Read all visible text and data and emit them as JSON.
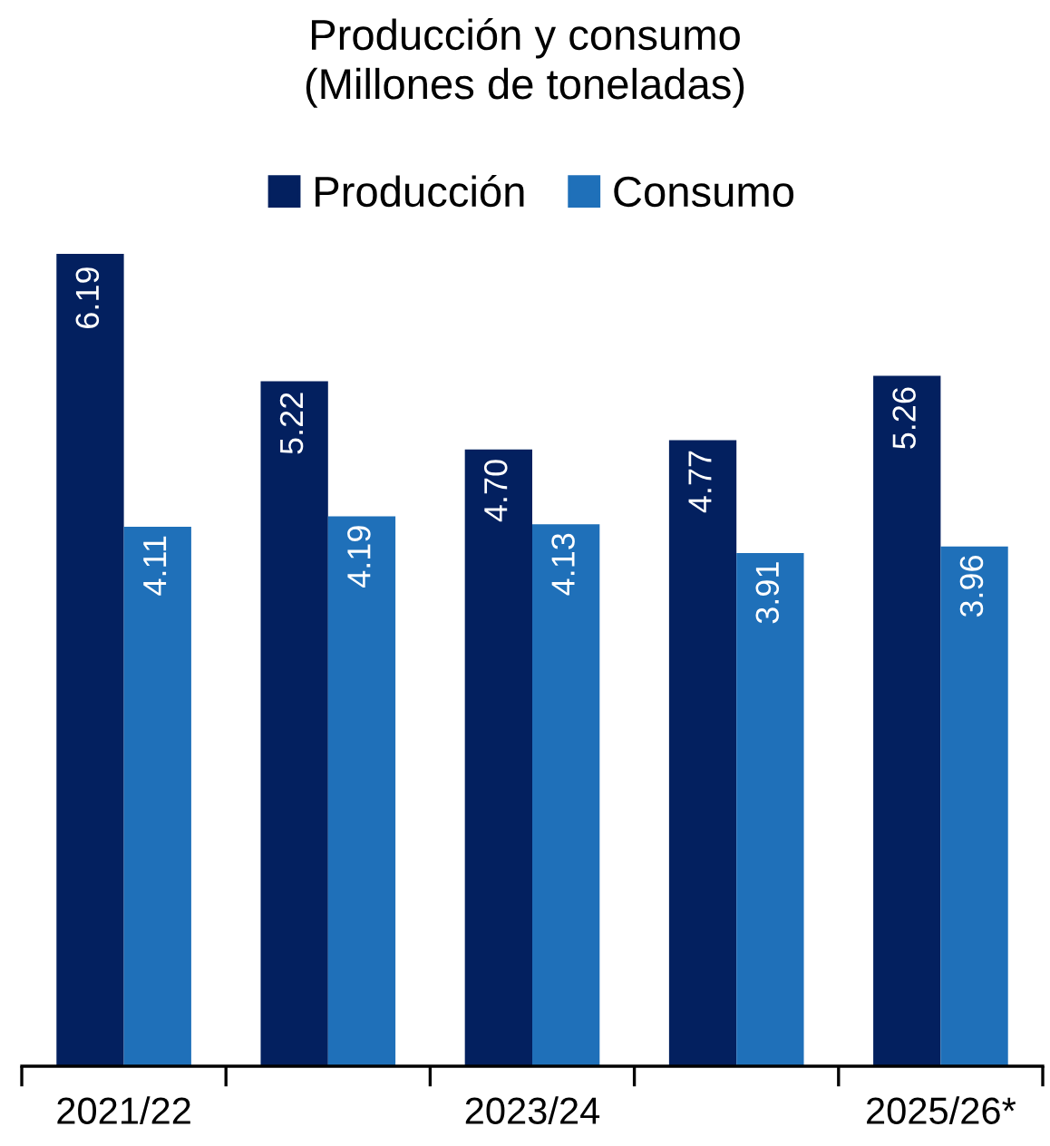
{
  "chart_data": {
    "type": "bar",
    "title": "Producción y consumo\n(Millones de toneladas)",
    "categories": [
      "2021/22",
      null,
      "2023/24",
      null,
      "2025/26*"
    ],
    "series": [
      {
        "name": "Producción",
        "color": "#03205f",
        "values": [
          6.19,
          5.22,
          4.7,
          4.77,
          5.26
        ],
        "value_labels": [
          "6.19",
          "5.22",
          "4.70",
          "4.77",
          "5.26"
        ]
      },
      {
        "name": "Consumo",
        "color": "#1f70b9",
        "values": [
          4.11,
          4.19,
          4.13,
          3.91,
          3.96
        ],
        "value_labels": [
          "4.11",
          "4.19",
          "4.13",
          "3.91",
          "3.96"
        ]
      }
    ],
    "legend": "top",
    "grid": false
  }
}
